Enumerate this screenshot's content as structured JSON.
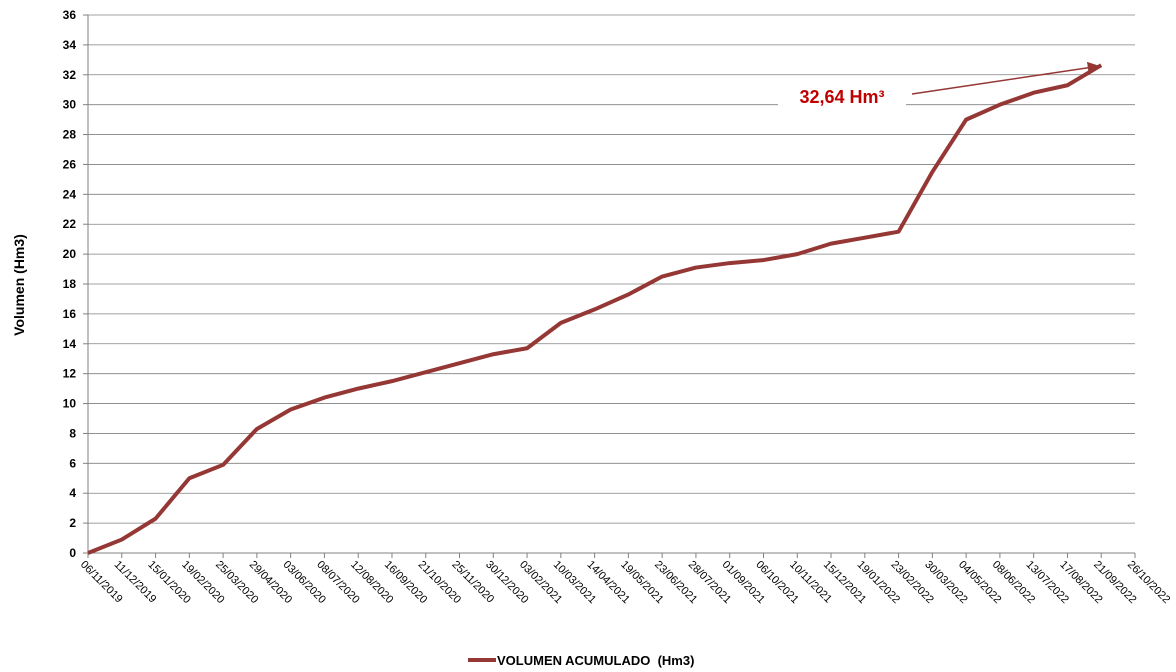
{
  "chart_data": {
    "type": "line",
    "ylabel": "Volumen (Hm3)",
    "categories": [
      "06/11/2019",
      "11/12/2019",
      "15/01/2020",
      "19/02/2020",
      "25/03/2020",
      "29/04/2020",
      "03/06/2020",
      "08/07/2020",
      "12/08/2020",
      "16/09/2020",
      "21/10/2020",
      "25/11/2020",
      "30/12/2020",
      "03/02/2021",
      "10/03/2021",
      "14/04/2021",
      "19/05/2021",
      "23/06/2021",
      "28/07/2021",
      "01/09/2021",
      "06/10/2021",
      "10/11/2021",
      "15/12/2021",
      "19/01/2022",
      "23/02/2022",
      "30/03/2022",
      "04/05/2022",
      "08/06/2022",
      "13/07/2022",
      "17/08/2022",
      "21/09/2022",
      "26/10/2022"
    ],
    "series": [
      {
        "name": "VOLUMEN ACUMULADO  (Hm3)",
        "color": "#953735",
        "values": [
          0,
          0.9,
          2.3,
          5.0,
          5.9,
          8.3,
          9.6,
          10.4,
          11.0,
          11.5,
          12.1,
          12.7,
          13.3,
          13.7,
          15.4,
          16.3,
          17.3,
          18.5,
          19.1,
          19.4,
          19.6,
          20.0,
          20.7,
          21.1,
          21.5,
          25.5,
          29.0,
          30.0,
          30.8,
          31.3,
          32.64,
          null
        ]
      }
    ],
    "annotation": "32,64 Hm³",
    "annotation_color": "#c00000",
    "ylim": [
      0,
      36
    ],
    "yticks": [
      0,
      2,
      4,
      6,
      8,
      10,
      12,
      14,
      16,
      18,
      20,
      22,
      24,
      26,
      28,
      30,
      32,
      34,
      36
    ],
    "grid": true,
    "legend": "bottom"
  }
}
